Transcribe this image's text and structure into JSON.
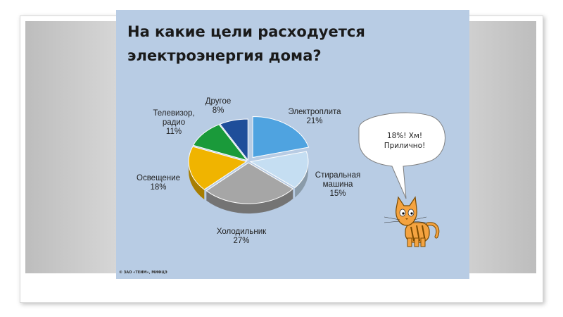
{
  "slide": {
    "title_line1": "На какие цели расходуется",
    "title_line2": "электроэнергия дома?",
    "speech": "18%! Хм! Прилично!",
    "copyright": "© ЗАО «ТЕИМ», МИФЦЭ"
  },
  "chart_data": {
    "type": "pie",
    "title": "",
    "slices": [
      {
        "name": "Электроплита",
        "value": 21,
        "label": "21%",
        "color": "#4fa3e0"
      },
      {
        "name": "Стиральная машина",
        "value": 15,
        "label": "15%",
        "color": "#c5def2"
      },
      {
        "name": "Холодильник",
        "value": 27,
        "label": "27%",
        "color": "#a6a6a6"
      },
      {
        "name": "Освещение",
        "value": 18,
        "label": "18%",
        "color": "#f0b400"
      },
      {
        "name": "Телевизор, радио",
        "value": 11,
        "label": "11%",
        "color": "#1a9a3a"
      },
      {
        "name": "Другое",
        "value": 8,
        "label": "8%",
        "color": "#1f4e9a"
      }
    ],
    "label_lines": [
      [
        "Электроплита",
        "21%"
      ],
      [
        "Стиральная",
        "машина",
        "15%"
      ],
      [
        "Холодильник",
        "27%"
      ],
      [
        "Освещение",
        "18%"
      ],
      [
        "Телевизор,",
        "радио",
        "11%"
      ],
      [
        "Другое",
        "8%"
      ]
    ],
    "exploded": "Электроплита"
  }
}
